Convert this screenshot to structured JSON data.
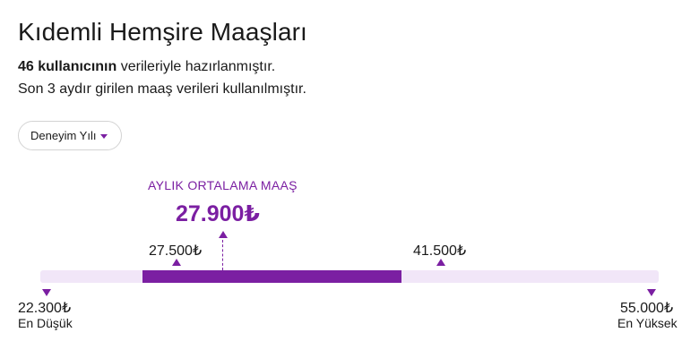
{
  "header": {
    "title": "Kıdemli Hemşire Maaşları",
    "user_count": "46 kullanıcının",
    "user_count_suffix": " verileriyle hazırlanmıştır.",
    "subtitle": "Son 3 aydır girilen maaş verileri kullanılmıştır."
  },
  "filter": {
    "label": "Deneyim Yılı",
    "icon": "chevron-down-icon",
    "accent": "#7b1fa2"
  },
  "salary": {
    "average_label": "AYLIK ORTALAMA MAAŞ",
    "average_value": "27.900₺",
    "range_low": "27.500₺",
    "range_high": "41.500₺",
    "min_value": "22.300₺",
    "min_label": "En Düşük",
    "max_value": "55.000₺",
    "max_label": "En Yüksek",
    "min_number": 22300,
    "max_number": 55000,
    "range_low_number": 27500,
    "range_high_number": 41500,
    "average_number": 27900
  },
  "colors": {
    "accent": "#7b1fa2",
    "track": "#f1e6f8"
  }
}
